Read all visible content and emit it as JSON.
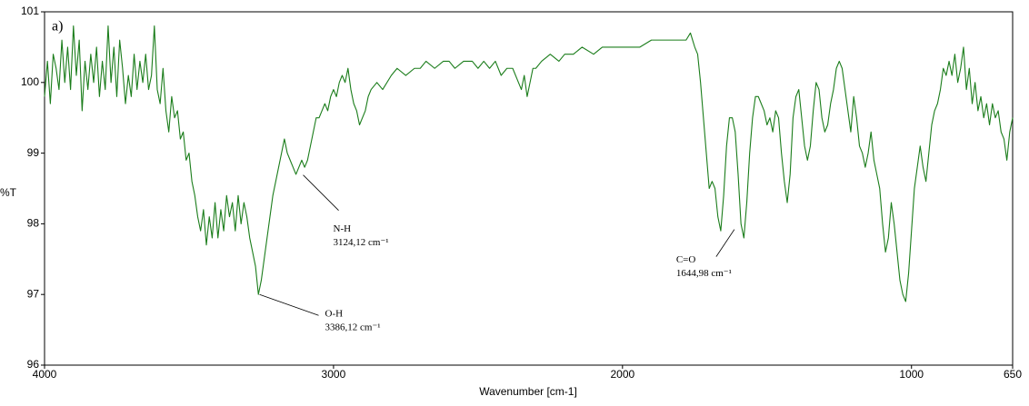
{
  "chart_data": {
    "type": "line",
    "panel_label": "a)",
    "xlabel": "Wavenumber [cm-1]",
    "ylabel": "%T",
    "xlim": [
      4000,
      650
    ],
    "ylim": [
      96,
      101
    ],
    "xticks": [
      4000,
      3000,
      2000,
      1000,
      650
    ],
    "yticks": [
      96,
      97,
      98,
      99,
      100,
      101
    ],
    "grid": false,
    "x": [
      4000,
      3990,
      3980,
      3970,
      3960,
      3950,
      3940,
      3930,
      3920,
      3910,
      3900,
      3890,
      3880,
      3870,
      3860,
      3850,
      3840,
      3830,
      3820,
      3810,
      3800,
      3790,
      3780,
      3770,
      3760,
      3750,
      3740,
      3730,
      3720,
      3710,
      3700,
      3690,
      3680,
      3670,
      3660,
      3650,
      3640,
      3630,
      3620,
      3610,
      3600,
      3590,
      3580,
      3570,
      3560,
      3550,
      3540,
      3530,
      3520,
      3510,
      3500,
      3490,
      3480,
      3470,
      3460,
      3450,
      3440,
      3430,
      3420,
      3410,
      3400,
      3390,
      3380,
      3370,
      3360,
      3350,
      3340,
      3330,
      3320,
      3310,
      3300,
      3290,
      3280,
      3270,
      3260,
      3250,
      3240,
      3230,
      3220,
      3210,
      3200,
      3190,
      3180,
      3170,
      3160,
      3150,
      3140,
      3130,
      3120,
      3110,
      3100,
      3090,
      3080,
      3070,
      3060,
      3050,
      3040,
      3030,
      3020,
      3010,
      3000,
      2990,
      2980,
      2970,
      2960,
      2950,
      2940,
      2930,
      2920,
      2910,
      2900,
      2890,
      2880,
      2870,
      2850,
      2830,
      2800,
      2780,
      2750,
      2720,
      2700,
      2680,
      2650,
      2620,
      2600,
      2580,
      2550,
      2520,
      2500,
      2480,
      2460,
      2440,
      2420,
      2400,
      2380,
      2360,
      2350,
      2340,
      2330,
      2320,
      2310,
      2300,
      2280,
      2250,
      2220,
      2200,
      2170,
      2140,
      2100,
      2070,
      2040,
      2000,
      1970,
      1940,
      1900,
      1870,
      1840,
      1810,
      1780,
      1765,
      1750,
      1740,
      1730,
      1720,
      1710,
      1700,
      1690,
      1680,
      1670,
      1660,
      1650,
      1640,
      1630,
      1620,
      1610,
      1600,
      1590,
      1580,
      1570,
      1560,
      1550,
      1540,
      1530,
      1520,
      1510,
      1500,
      1490,
      1480,
      1470,
      1460,
      1450,
      1440,
      1430,
      1420,
      1410,
      1400,
      1390,
      1380,
      1370,
      1360,
      1350,
      1340,
      1330,
      1320,
      1310,
      1300,
      1290,
      1280,
      1270,
      1260,
      1250,
      1240,
      1230,
      1220,
      1210,
      1200,
      1190,
      1180,
      1170,
      1160,
      1150,
      1140,
      1130,
      1120,
      1110,
      1100,
      1090,
      1080,
      1070,
      1060,
      1050,
      1040,
      1030,
      1020,
      1010,
      1000,
      990,
      980,
      970,
      960,
      950,
      940,
      930,
      920,
      910,
      900,
      890,
      880,
      870,
      860,
      850,
      840,
      830,
      820,
      810,
      800,
      790,
      780,
      770,
      760,
      750,
      740,
      730,
      720,
      710,
      700,
      690,
      680,
      670,
      660,
      650
    ],
    "series": [
      {
        "color": "#1b7d1b",
        "values": [
          99.8,
          100.3,
          99.7,
          100.4,
          100.2,
          99.9,
          100.6,
          100.0,
          100.5,
          99.9,
          100.8,
          100.1,
          100.6,
          99.6,
          100.3,
          99.9,
          100.4,
          100.0,
          100.5,
          99.8,
          100.3,
          99.9,
          100.8,
          100.0,
          100.5,
          99.8,
          100.6,
          100.2,
          99.7,
          100.1,
          99.8,
          100.4,
          99.9,
          100.3,
          100.0,
          100.4,
          99.9,
          100.1,
          100.8,
          99.9,
          99.7,
          100.2,
          99.6,
          99.3,
          99.8,
          99.5,
          99.6,
          99.2,
          99.3,
          98.9,
          99.0,
          98.6,
          98.4,
          98.1,
          97.9,
          98.2,
          97.7,
          98.1,
          97.8,
          98.3,
          97.8,
          98.2,
          97.9,
          98.4,
          98.1,
          98.3,
          97.9,
          98.4,
          98.0,
          98.3,
          98.1,
          97.8,
          97.6,
          97.4,
          97.0,
          97.2,
          97.5,
          97.8,
          98.1,
          98.4,
          98.6,
          98.8,
          99.0,
          99.2,
          99.0,
          98.9,
          98.8,
          98.7,
          98.8,
          98.9,
          98.8,
          98.9,
          99.1,
          99.3,
          99.5,
          99.5,
          99.6,
          99.7,
          99.6,
          99.8,
          99.9,
          99.8,
          100.0,
          100.1,
          100.0,
          100.2,
          99.9,
          99.7,
          99.6,
          99.4,
          99.5,
          99.6,
          99.8,
          99.9,
          100.0,
          99.9,
          100.1,
          100.2,
          100.1,
          100.2,
          100.2,
          100.3,
          100.2,
          100.3,
          100.3,
          100.2,
          100.3,
          100.3,
          100.2,
          100.3,
          100.2,
          100.3,
          100.1,
          100.2,
          100.2,
          100.0,
          99.9,
          100.1,
          99.8,
          100.0,
          100.2,
          100.2,
          100.3,
          100.4,
          100.3,
          100.4,
          100.4,
          100.5,
          100.4,
          100.5,
          100.5,
          100.5,
          100.5,
          100.5,
          100.6,
          100.6,
          100.6,
          100.6,
          100.6,
          100.7,
          100.5,
          100.4,
          100.0,
          99.5,
          99.0,
          98.5,
          98.6,
          98.5,
          98.1,
          97.9,
          98.4,
          99.1,
          99.5,
          99.5,
          99.3,
          98.7,
          98.0,
          97.8,
          98.3,
          99.0,
          99.5,
          99.8,
          99.8,
          99.7,
          99.6,
          99.4,
          99.5,
          99.3,
          99.6,
          99.5,
          99.0,
          98.6,
          98.3,
          98.7,
          99.5,
          99.8,
          99.9,
          99.5,
          99.1,
          98.9,
          99.1,
          99.6,
          100.0,
          99.9,
          99.5,
          99.3,
          99.4,
          99.7,
          99.9,
          100.2,
          100.3,
          100.2,
          99.9,
          99.6,
          99.3,
          99.8,
          99.5,
          99.1,
          99.0,
          98.8,
          99.0,
          99.3,
          98.9,
          98.7,
          98.5,
          98.0,
          97.6,
          97.8,
          98.3,
          98.0,
          97.6,
          97.2,
          97.0,
          96.9,
          97.3,
          97.9,
          98.5,
          98.8,
          99.1,
          98.8,
          98.6,
          99.0,
          99.4,
          99.6,
          99.7,
          99.9,
          100.2,
          100.1,
          100.3,
          100.1,
          100.4,
          100.0,
          100.2,
          100.5,
          99.9,
          100.2,
          99.7,
          100.0,
          99.6,
          99.8,
          99.5,
          99.7,
          99.4,
          99.7,
          99.5,
          99.6,
          99.3,
          99.2,
          98.9,
          99.3,
          99.5
        ]
      }
    ],
    "annotations": [
      {
        "label": "N-H",
        "text": "3124,12 cm⁻¹",
        "x": 3105,
        "y": 98.69
      },
      {
        "label": "O-H",
        "text": "3386,12 cm⁻¹",
        "x": 3256,
        "y": 97.0
      },
      {
        "label": "C=O",
        "text": "1644,98 cm⁻¹",
        "x": 1613,
        "y": 97.92
      }
    ]
  }
}
